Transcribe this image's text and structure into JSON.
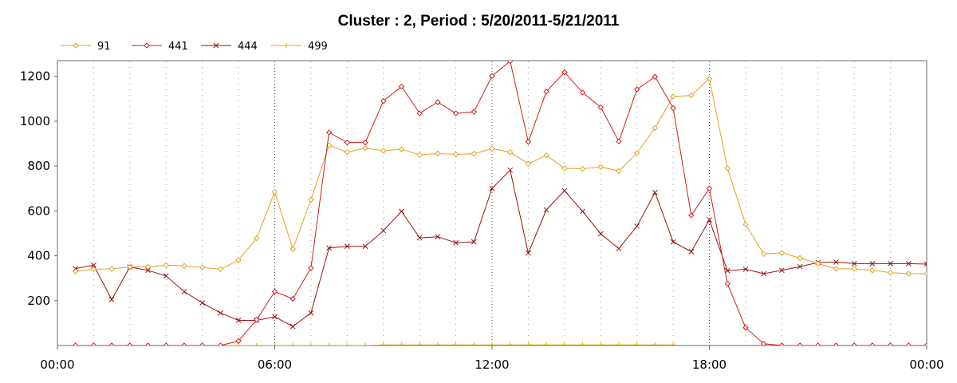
{
  "chart_data": {
    "type": "line",
    "title": "Cluster : 2, Period : 5/20/2011-5/21/2011",
    "xlabel": "",
    "ylabel": "",
    "x_ticks": [
      "00:00",
      "06:00",
      "12:00",
      "18:00",
      "00:00"
    ],
    "y_ticks": [
      "200",
      "400",
      "600",
      "800",
      "1000",
      "1200"
    ],
    "xlim": [
      0,
      24
    ],
    "ylim": [
      0,
      1270
    ],
    "grid": {
      "vertical_dotted": true,
      "horizontal": false
    },
    "legend_position": "top-left",
    "series": [
      {
        "name": "91",
        "color": "#e6a020",
        "marker": "diamond",
        "x": [
          0.5,
          1.0,
          1.5,
          2.0,
          2.5,
          3.0,
          3.5,
          4.0,
          4.5,
          5.0,
          5.5,
          6.0,
          6.5,
          7.0,
          7.5,
          8.0,
          8.5,
          9.0,
          9.5,
          10.0,
          10.5,
          11.0,
          11.5,
          12.0,
          12.5,
          13.0,
          13.5,
          14.0,
          14.5,
          15.0,
          15.5,
          16.0,
          16.5,
          17.0,
          17.5,
          18.0,
          18.5,
          19.0,
          19.5,
          20.0,
          20.5,
          21.0,
          21.5,
          22.0,
          22.5,
          23.0,
          23.5,
          24.0
        ],
        "values": [
          330,
          340,
          342,
          350,
          350,
          358,
          355,
          348,
          340,
          380,
          478,
          685,
          430,
          650,
          893,
          862,
          880,
          868,
          875,
          850,
          856,
          852,
          855,
          878,
          862,
          810,
          848,
          790,
          788,
          796,
          778,
          858,
          970,
          1110,
          1115,
          1190,
          790,
          540,
          408,
          413,
          390,
          365,
          342,
          342,
          335,
          325,
          320,
          320
        ]
      },
      {
        "name": "441",
        "color": "#d41c1c",
        "marker": "diamond",
        "x": [
          0.5,
          1.0,
          1.5,
          2.0,
          2.5,
          3.0,
          3.5,
          4.0,
          4.5,
          5.0,
          5.5,
          6.0,
          6.5,
          7.0,
          7.5,
          8.0,
          8.5,
          9.0,
          9.5,
          10.0,
          10.5,
          11.0,
          11.5,
          12.0,
          12.5,
          13.0,
          13.5,
          14.0,
          14.5,
          15.0,
          15.5,
          16.0,
          16.5,
          17.0,
          17.5,
          18.0,
          18.5,
          19.0,
          19.5,
          20.0,
          20.5,
          21.0,
          21.5,
          22.0,
          22.5,
          23.0,
          23.5,
          24.0
        ],
        "values": [
          0,
          0,
          0,
          0,
          0,
          0,
          0,
          0,
          0,
          20,
          115,
          240,
          208,
          345,
          950,
          905,
          905,
          1090,
          1155,
          1035,
          1085,
          1035,
          1042,
          1202,
          1268,
          908,
          1132,
          1218,
          1128,
          1062,
          910,
          1142,
          1198,
          1058,
          580,
          700,
          275,
          80,
          8,
          0,
          0,
          0,
          0,
          0,
          0,
          0,
          0,
          0
        ]
      },
      {
        "name": "444",
        "color": "#9a1212",
        "marker": "x",
        "x": [
          0.5,
          1.0,
          1.5,
          2.0,
          2.5,
          3.0,
          3.5,
          4.0,
          4.5,
          5.0,
          5.5,
          6.0,
          6.5,
          7.0,
          7.5,
          8.0,
          8.5,
          9.0,
          9.5,
          10.0,
          10.5,
          11.0,
          11.5,
          12.0,
          12.5,
          13.0,
          13.5,
          14.0,
          14.5,
          15.0,
          15.5,
          16.0,
          16.5,
          17.0,
          17.5,
          18.0,
          18.5,
          19.0,
          19.5,
          20.0,
          20.5,
          21.0,
          21.5,
          22.0,
          22.5,
          23.0,
          23.5,
          24.0
        ],
        "values": [
          343,
          358,
          205,
          350,
          335,
          310,
          240,
          190,
          145,
          112,
          112,
          128,
          85,
          145,
          435,
          442,
          442,
          512,
          598,
          480,
          485,
          458,
          462,
          700,
          782,
          412,
          605,
          690,
          598,
          498,
          432,
          532,
          682,
          462,
          418,
          560,
          333,
          340,
          320,
          335,
          352,
          370,
          372,
          365,
          365,
          365,
          365,
          363
        ]
      },
      {
        "name": "499",
        "color": "#e8a800",
        "marker": "plus",
        "x": [
          0.5,
          1.0,
          1.5,
          2.0,
          2.5,
          3.0,
          3.5,
          4.0,
          4.5,
          5.0,
          5.5,
          6.0,
          6.5,
          7.0,
          7.5,
          8.0,
          8.5,
          9.0,
          9.5,
          10.0,
          10.5,
          11.0,
          11.5,
          12.0,
          12.5,
          13.0,
          13.5,
          14.0,
          14.5,
          15.0,
          15.5,
          16.0,
          16.5,
          17.0
        ],
        "values": [
          0,
          0,
          0,
          0,
          0,
          0,
          0,
          0,
          0,
          0,
          0,
          0,
          0,
          0,
          0,
          0,
          0,
          3,
          3,
          3,
          3,
          3,
          3,
          3,
          3,
          3,
          3,
          3,
          3,
          3,
          3,
          3,
          3,
          3
        ]
      }
    ]
  }
}
